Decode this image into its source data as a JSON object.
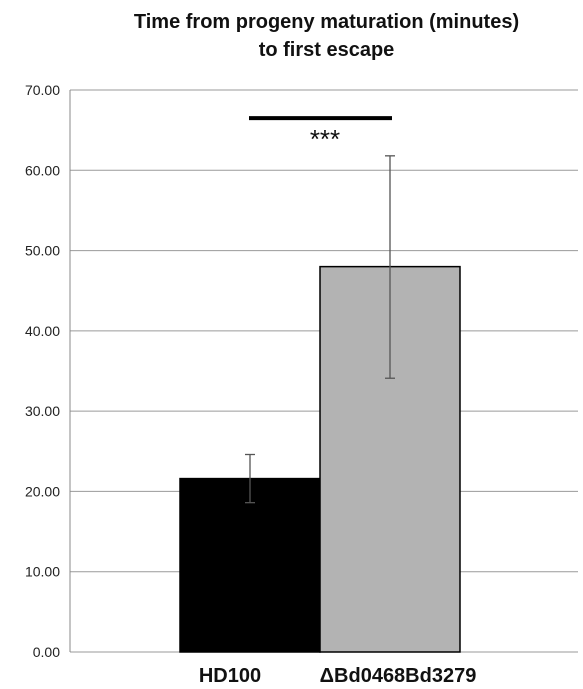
{
  "chart_data": {
    "type": "bar",
    "title_line1": "Time from progeny maturation (minutes)",
    "title_line2": "to first escape",
    "categories": [
      "HD100",
      "ΔBd0468Bd3279"
    ],
    "values": [
      21.6,
      48.0
    ],
    "error_low": [
      18.6,
      34.1
    ],
    "error_high": [
      24.6,
      61.8
    ],
    "colors": [
      "#000000",
      "#b3b3b3"
    ],
    "ylim": [
      0,
      70
    ],
    "ytick_labels": [
      "0.00",
      "10.00",
      "20.00",
      "30.00",
      "40.00",
      "50.00",
      "60.00",
      "70.00"
    ],
    "significance_label": "***",
    "significance_level": 66.5,
    "grid": true
  }
}
